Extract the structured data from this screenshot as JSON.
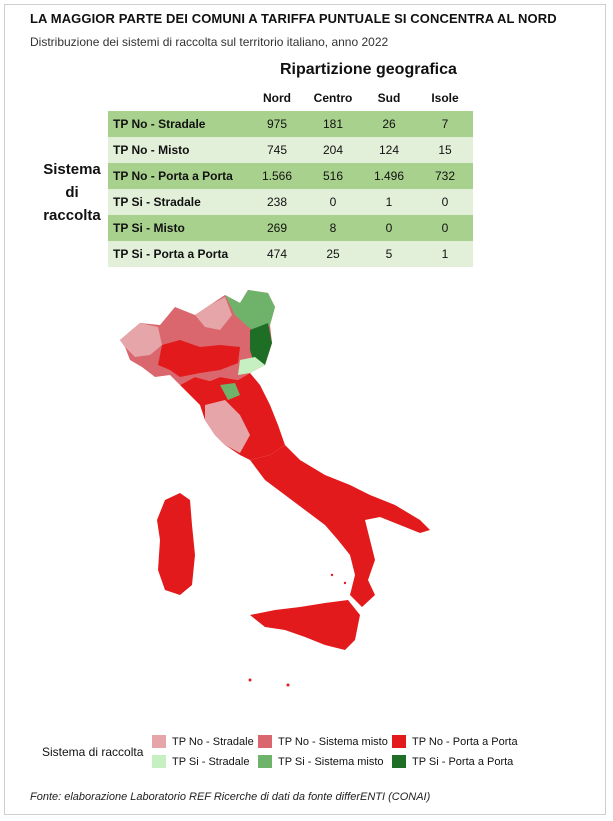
{
  "title": "LA MAGGIOR PARTE DEI COMUNI A TARIFFA PUNTUALE SI CONCENTRA AL NORD",
  "subtitle": "Distribuzione dei sistemi di raccolta sul territorio italiano, anno 2022",
  "table_header": "Ripartizione geografica",
  "row_header": "Sistema di raccolta",
  "row_header_lines": [
    "Sistema",
    "di",
    "raccolta"
  ],
  "chart_data": {
    "type": "table",
    "columns": [
      "Nord",
      "Centro",
      "Sud",
      "Isole"
    ],
    "rows": [
      {
        "label": "TP No - Stradale",
        "values": [
          "975",
          "181",
          "26",
          "7"
        ]
      },
      {
        "label": "TP No - Misto",
        "values": [
          "745",
          "204",
          "124",
          "15"
        ]
      },
      {
        "label": "TP No - Porta a Porta",
        "values": [
          "1.566",
          "516",
          "1.496",
          "732"
        ]
      },
      {
        "label": "TP Si - Stradale",
        "values": [
          "238",
          "0",
          "1",
          "0"
        ]
      },
      {
        "label": "TP Si - Misto",
        "values": [
          "269",
          "8",
          "0",
          "0"
        ]
      },
      {
        "label": "TP Si - Porta a Porta",
        "values": [
          "474",
          "25",
          "5",
          "1"
        ]
      }
    ]
  },
  "legend": {
    "title": "Sistema di raccolta",
    "items": [
      {
        "label": "TP No - Stradale",
        "color": "#e6a5a8"
      },
      {
        "label": "TP No - Sistema misto",
        "color": "#d9676d"
      },
      {
        "label": "TP No - Porta a Porta",
        "color": "#e31a1c"
      },
      {
        "label": "TP Si - Stradale",
        "color": "#c7f0c2"
      },
      {
        "label": "TP Si - Sistema misto",
        "color": "#6fb36b"
      },
      {
        "label": "TP Si - Porta a Porta",
        "color": "#1e6f25"
      }
    ]
  },
  "source": "Fonte: elaborazione Laboratorio REF Ricerche di dati da fonte differENTI (CONAI)"
}
